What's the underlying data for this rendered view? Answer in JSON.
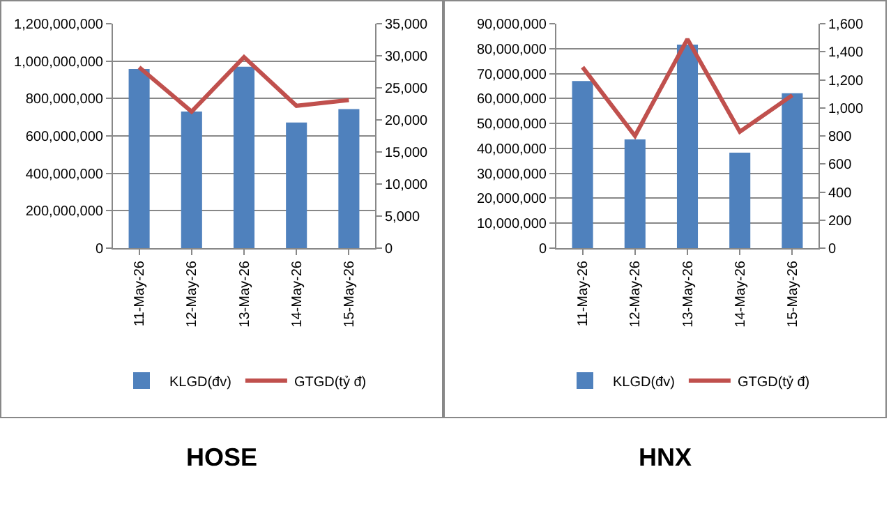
{
  "chart_data": [
    {
      "type": "bar",
      "title": "HOSE",
      "categories": [
        "11-May-26",
        "12-May-26",
        "13-May-26",
        "14-May-26",
        "15-May-26"
      ],
      "series": [
        {
          "name": "KLGD(đv)",
          "color": "#4f81bd",
          "values": [
            958000000,
            730000000,
            970000000,
            672000000,
            743000000
          ]
        },
        {
          "name": "GTGD(tỷ đ)",
          "type": "line",
          "axis": "y2",
          "color": "#c0504d",
          "values": [
            28200,
            21300,
            29800,
            22200,
            23100
          ]
        }
      ],
      "ylim": [
        0,
        1200000000
      ],
      "yticks": [
        {
          "value": 0,
          "label": "0"
        },
        {
          "value": 200000000,
          "label": "200,000,000"
        },
        {
          "value": 400000000,
          "label": "400,000,000"
        },
        {
          "value": 600000000,
          "label": "600,000,000"
        },
        {
          "value": 800000000,
          "label": "800,000,000"
        },
        {
          "value": 1000000000,
          "label": "1,000,000,000"
        },
        {
          "value": 1200000000,
          "label": "1,200,000,000"
        }
      ],
      "y2lim": [
        0,
        35000
      ],
      "y2ticks": [
        {
          "value": 0,
          "label": "0"
        },
        {
          "value": 5000,
          "label": "5,000"
        },
        {
          "value": 10000,
          "label": "10,000"
        },
        {
          "value": 15000,
          "label": "15,000"
        },
        {
          "value": 20000,
          "label": "20,000"
        },
        {
          "value": 25000,
          "label": "25,000"
        },
        {
          "value": 30000,
          "label": "30,000"
        },
        {
          "value": 35000,
          "label": "35,000"
        }
      ],
      "grid": "y",
      "legend": "bottom",
      "marker": "none"
    },
    {
      "type": "bar",
      "title": "HNX",
      "categories": [
        "11-May-26",
        "12-May-26",
        "13-May-26",
        "14-May-26",
        "15-May-26"
      ],
      "series": [
        {
          "name": "KLGD(đv)",
          "color": "#4f81bd",
          "values": [
            67000000,
            43600000,
            81600000,
            38300000,
            62100000
          ]
        },
        {
          "name": "GTGD(tỷ đ)",
          "type": "line",
          "axis": "y2",
          "color": "#c0504d",
          "values": [
            1290,
            800,
            1490,
            830,
            1090
          ]
        }
      ],
      "ylim": [
        0,
        90000000
      ],
      "yticks": [
        {
          "value": 0,
          "label": "0"
        },
        {
          "value": 10000000,
          "label": "10,000,000"
        },
        {
          "value": 20000000,
          "label": "20,000,000"
        },
        {
          "value": 30000000,
          "label": "30,000,000"
        },
        {
          "value": 40000000,
          "label": "40,000,000"
        },
        {
          "value": 50000000,
          "label": "50,000,000"
        },
        {
          "value": 60000000,
          "label": "60,000,000"
        },
        {
          "value": 70000000,
          "label": "70,000,000"
        },
        {
          "value": 80000000,
          "label": "80,000,000"
        },
        {
          "value": 90000000,
          "label": "90,000,000"
        }
      ],
      "y2lim": [
        0,
        1600
      ],
      "y2ticks": [
        {
          "value": 0,
          "label": "0"
        },
        {
          "value": 200,
          "label": "200"
        },
        {
          "value": 400,
          "label": "400"
        },
        {
          "value": 600,
          "label": "600"
        },
        {
          "value": 800,
          "label": "800"
        },
        {
          "value": 1000,
          "label": "1,000"
        },
        {
          "value": 1200,
          "label": "1,200"
        },
        {
          "value": 1400,
          "label": "1,400"
        },
        {
          "value": 1600,
          "label": "1,600"
        }
      ],
      "grid": "y",
      "legend": "bottom",
      "marker": "none"
    }
  ]
}
